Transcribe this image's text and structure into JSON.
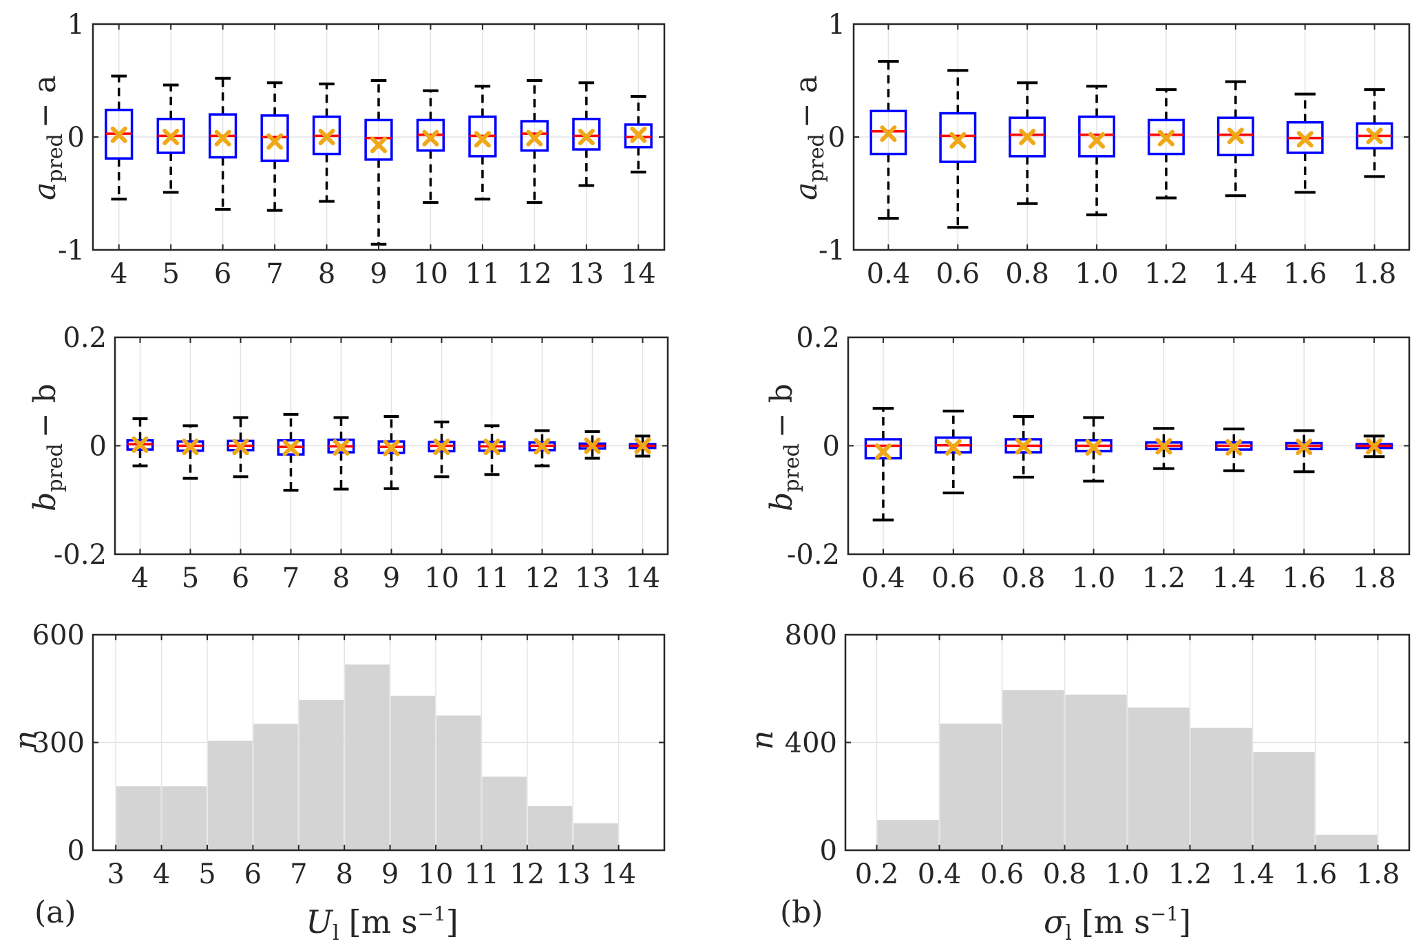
{
  "panel_labels": {
    "a": "(a)",
    "b": "(b)"
  },
  "axis_labels": {
    "a_pred_main": "a",
    "a_pred_sub": "pred",
    "a_pred_tail": "− a",
    "b_pred_main": "b",
    "b_pred_sub": "pred",
    "b_pred_tail": "− b",
    "n": "n",
    "U_main": "U",
    "U_sub": "l",
    "sigma_main": "σ",
    "sigma_sub": "l",
    "unit_left": "[m s",
    "unit_exp": "−1",
    "unit_right": "]"
  },
  "colors": {
    "box": "#0000ff",
    "median": "#ff0000",
    "mean": "#f0a818",
    "whisker": "#000000",
    "bar": "#d4d4d4",
    "grid": "#e3e3e3",
    "axis": "#262626"
  },
  "chart_data": [
    {
      "id": "a_vs_U",
      "type": "box",
      "ylim": [
        -1,
        1
      ],
      "yticks": [
        "-1",
        "0",
        "1"
      ],
      "yticks_values": [
        -1,
        0,
        1
      ],
      "categories": [
        "4",
        "5",
        "6",
        "7",
        "8",
        "9",
        "10",
        "11",
        "12",
        "13",
        "14"
      ],
      "boxes": [
        {
          "q1": -0.19,
          "median": 0.03,
          "q3": 0.24,
          "wlo": -0.55,
          "whi": 0.54,
          "mean": 0.02
        },
        {
          "q1": -0.14,
          "median": 0.01,
          "q3": 0.16,
          "wlo": -0.49,
          "whi": 0.46,
          "mean": 0.0
        },
        {
          "q1": -0.18,
          "median": 0.01,
          "q3": 0.2,
          "wlo": -0.64,
          "whi": 0.52,
          "mean": -0.01
        },
        {
          "q1": -0.21,
          "median": 0.0,
          "q3": 0.19,
          "wlo": -0.65,
          "whi": 0.48,
          "mean": -0.04
        },
        {
          "q1": -0.15,
          "median": 0.01,
          "q3": 0.18,
          "wlo": -0.57,
          "whi": 0.47,
          "mean": 0.0
        },
        {
          "q1": -0.2,
          "median": -0.01,
          "q3": 0.15,
          "wlo": -0.95,
          "whi": 0.5,
          "mean": -0.07
        },
        {
          "q1": -0.12,
          "median": 0.02,
          "q3": 0.15,
          "wlo": -0.58,
          "whi": 0.41,
          "mean": -0.01
        },
        {
          "q1": -0.17,
          "median": 0.01,
          "q3": 0.18,
          "wlo": -0.55,
          "whi": 0.45,
          "mean": -0.02
        },
        {
          "q1": -0.12,
          "median": 0.03,
          "q3": 0.14,
          "wlo": -0.58,
          "whi": 0.5,
          "mean": -0.01
        },
        {
          "q1": -0.11,
          "median": 0.01,
          "q3": 0.16,
          "wlo": -0.43,
          "whi": 0.48,
          "mean": 0.0
        },
        {
          "q1": -0.09,
          "median": 0.0,
          "q3": 0.11,
          "wlo": -0.31,
          "whi": 0.36,
          "mean": 0.02
        }
      ]
    },
    {
      "id": "a_vs_sigma",
      "type": "box",
      "ylim": [
        -1,
        1
      ],
      "yticks": [
        "-1",
        "0",
        "1"
      ],
      "yticks_values": [
        -1,
        0,
        1
      ],
      "categories": [
        "0.4",
        "0.6",
        "0.8",
        "1.0",
        "1.2",
        "1.4",
        "1.6",
        "1.8"
      ],
      "boxes": [
        {
          "q1": -0.15,
          "median": 0.05,
          "q3": 0.23,
          "wlo": -0.72,
          "whi": 0.67,
          "mean": 0.03
        },
        {
          "q1": -0.22,
          "median": 0.01,
          "q3": 0.21,
          "wlo": -0.8,
          "whi": 0.59,
          "mean": -0.03
        },
        {
          "q1": -0.17,
          "median": 0.02,
          "q3": 0.17,
          "wlo": -0.59,
          "whi": 0.48,
          "mean": 0.0
        },
        {
          "q1": -0.17,
          "median": 0.02,
          "q3": 0.18,
          "wlo": -0.69,
          "whi": 0.45,
          "mean": -0.03
        },
        {
          "q1": -0.15,
          "median": 0.02,
          "q3": 0.15,
          "wlo": -0.54,
          "whi": 0.42,
          "mean": -0.01
        },
        {
          "q1": -0.16,
          "median": 0.02,
          "q3": 0.17,
          "wlo": -0.52,
          "whi": 0.49,
          "mean": 0.01
        },
        {
          "q1": -0.14,
          "median": -0.01,
          "q3": 0.13,
          "wlo": -0.49,
          "whi": 0.38,
          "mean": -0.02
        },
        {
          "q1": -0.1,
          "median": 0.01,
          "q3": 0.12,
          "wlo": -0.35,
          "whi": 0.42,
          "mean": 0.01
        }
      ]
    },
    {
      "id": "b_vs_U",
      "type": "box",
      "ylim": [
        -0.2,
        0.2
      ],
      "yticks": [
        "-0.2",
        "0",
        "0.2"
      ],
      "yticks_values": [
        -0.2,
        0,
        0.2
      ],
      "categories": [
        "4",
        "5",
        "6",
        "7",
        "8",
        "9",
        "10",
        "11",
        "12",
        "13",
        "14"
      ],
      "boxes": [
        {
          "q1": -0.007,
          "median": 0.003,
          "q3": 0.01,
          "wlo": -0.037,
          "whi": 0.05,
          "mean": 0.002
        },
        {
          "q1": -0.009,
          "median": 0.0,
          "q3": 0.008,
          "wlo": -0.06,
          "whi": 0.037,
          "mean": -0.002
        },
        {
          "q1": -0.008,
          "median": 0.0,
          "q3": 0.009,
          "wlo": -0.057,
          "whi": 0.052,
          "mean": -0.002
        },
        {
          "q1": -0.016,
          "median": -0.002,
          "q3": 0.01,
          "wlo": -0.082,
          "whi": 0.058,
          "mean": -0.004
        },
        {
          "q1": -0.012,
          "median": -0.001,
          "q3": 0.011,
          "wlo": -0.08,
          "whi": 0.052,
          "mean": -0.003
        },
        {
          "q1": -0.013,
          "median": -0.002,
          "q3": 0.008,
          "wlo": -0.079,
          "whi": 0.054,
          "mean": -0.004
        },
        {
          "q1": -0.01,
          "median": 0.0,
          "q3": 0.007,
          "wlo": -0.057,
          "whi": 0.044,
          "mean": -0.002
        },
        {
          "q1": -0.009,
          "median": -0.001,
          "q3": 0.007,
          "wlo": -0.053,
          "whi": 0.037,
          "mean": -0.002
        },
        {
          "q1": -0.008,
          "median": 0.0,
          "q3": 0.006,
          "wlo": -0.037,
          "whi": 0.028,
          "mean": -0.001
        },
        {
          "q1": -0.005,
          "median": 0.0,
          "q3": 0.004,
          "wlo": -0.023,
          "whi": 0.026,
          "mean": 0.0
        },
        {
          "q1": -0.004,
          "median": 0.0,
          "q3": 0.003,
          "wlo": -0.019,
          "whi": 0.018,
          "mean": 0.0
        }
      ]
    },
    {
      "id": "b_vs_sigma",
      "type": "box",
      "ylim": [
        -0.2,
        0.2
      ],
      "yticks": [
        "-0.2",
        "0",
        "0.2"
      ],
      "yticks_values": [
        -0.2,
        0,
        0.2
      ],
      "categories": [
        "0.4",
        "0.6",
        "0.8",
        "1.0",
        "1.2",
        "1.4",
        "1.6",
        "1.8"
      ],
      "boxes": [
        {
          "q1": -0.023,
          "median": 0.0,
          "q3": 0.012,
          "wlo": -0.137,
          "whi": 0.069,
          "mean": -0.011
        },
        {
          "q1": -0.012,
          "median": 0.001,
          "q3": 0.015,
          "wlo": -0.087,
          "whi": 0.064,
          "mean": -0.003
        },
        {
          "q1": -0.012,
          "median": 0.0,
          "q3": 0.012,
          "wlo": -0.058,
          "whi": 0.054,
          "mean": -0.001
        },
        {
          "q1": -0.01,
          "median": 0.0,
          "q3": 0.01,
          "wlo": -0.065,
          "whi": 0.052,
          "mean": -0.003
        },
        {
          "q1": -0.006,
          "median": 0.0,
          "q3": 0.006,
          "wlo": -0.042,
          "whi": 0.032,
          "mean": -0.001
        },
        {
          "q1": -0.007,
          "median": 0.0,
          "q3": 0.006,
          "wlo": -0.046,
          "whi": 0.031,
          "mean": -0.003
        },
        {
          "q1": -0.006,
          "median": 0.0,
          "q3": 0.005,
          "wlo": -0.048,
          "whi": 0.028,
          "mean": -0.002
        },
        {
          "q1": -0.004,
          "median": 0.0,
          "q3": 0.003,
          "wlo": -0.02,
          "whi": 0.018,
          "mean": -0.001
        }
      ]
    },
    {
      "id": "hist_U",
      "type": "bar",
      "ylim": [
        0,
        600
      ],
      "yticks": [
        "0",
        "300",
        "600"
      ],
      "yticks_values": [
        0,
        300,
        600
      ],
      "xlim": [
        2.5,
        15
      ],
      "xticks": [
        "3",
        "4",
        "5",
        "6",
        "7",
        "8",
        "9",
        "10",
        "11",
        "12",
        "13",
        "14"
      ],
      "xticks_values": [
        3,
        4,
        5,
        6,
        7,
        8,
        9,
        10,
        11,
        12,
        13,
        14
      ],
      "bin_edges": [
        3,
        4,
        5,
        6,
        7,
        8,
        9,
        10,
        11,
        12,
        13,
        14
      ],
      "values": [
        178,
        178,
        305,
        352,
        418,
        517,
        430,
        375,
        205,
        123,
        75
      ]
    },
    {
      "id": "hist_sigma",
      "type": "bar",
      "ylim": [
        0,
        800
      ],
      "yticks": [
        "0",
        "400",
        "800"
      ],
      "yticks_values": [
        0,
        400,
        800
      ],
      "xlim": [
        0.1,
        1.9
      ],
      "xticks": [
        "0.2",
        "0.4",
        "0.6",
        "0.8",
        "1.0",
        "1.2",
        "1.4",
        "1.6",
        "1.8"
      ],
      "xticks_values": [
        0.2,
        0.4,
        0.6,
        0.8,
        1.0,
        1.2,
        1.4,
        1.6,
        1.8
      ],
      "bin_edges": [
        0.2,
        0.4,
        0.6,
        0.8,
        1.0,
        1.2,
        1.4,
        1.6,
        1.8
      ],
      "values": [
        112,
        470,
        595,
        578,
        530,
        455,
        365,
        57
      ]
    }
  ]
}
